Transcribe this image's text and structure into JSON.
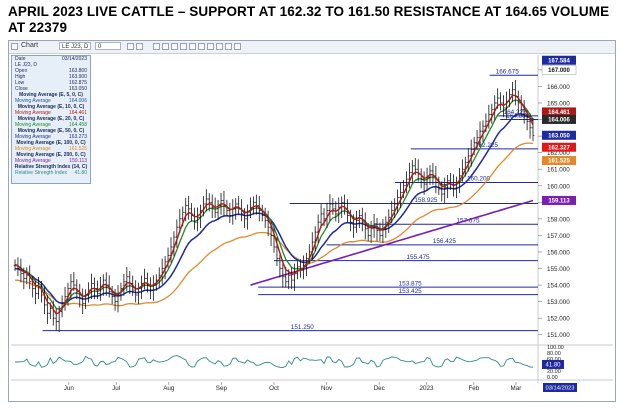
{
  "headline": "APRIL 2023 LIVE CATTLE –  SUPPORT AT 162.32 TO 161.50  RESISTANCE AT 164.65  VOLUME AT 22379",
  "toolbar": {
    "chart_label": "Chart",
    "symbol": "LE J23, D",
    "interval": "0"
  },
  "data_window": {
    "rows": [
      {
        "label": "Date",
        "value": "03/14/2023",
        "kind": "plain",
        "color": "#1a2a5a"
      },
      {
        "label": "LE J23, D",
        "value": "",
        "kind": "plain",
        "color": "#1a2a5a"
      },
      {
        "label": "Open",
        "value": "163.800",
        "kind": "plain",
        "color": "#1a2a5a"
      },
      {
        "label": "High",
        "value": "163.900",
        "kind": "plain",
        "color": "#1a2a5a"
      },
      {
        "label": "Low",
        "value": "162.875",
        "kind": "plain",
        "color": "#1a2a5a"
      },
      {
        "label": "Close",
        "value": "163.050",
        "kind": "plain",
        "color": "#1a2a5a"
      },
      {
        "label": "Moving Average (E, 5, 0, C)",
        "value": "",
        "kind": "header",
        "color": "#1a2a5a"
      },
      {
        "label": "Moving Average",
        "value": "164.006",
        "kind": "plain",
        "color": "#2b4fa0"
      },
      {
        "label": "Moving Average (E, 10, 0, C)",
        "value": "",
        "kind": "header",
        "color": "#1a2a5a"
      },
      {
        "label": "Moving Average",
        "value": "164.461",
        "kind": "plain",
        "color": "#b01818"
      },
      {
        "label": "Moving Average (E, 20, 0, C)",
        "value": "",
        "kind": "header",
        "color": "#1a2a5a"
      },
      {
        "label": "Moving Average",
        "value": "164.458",
        "kind": "plain",
        "color": "#1d8a2b"
      },
      {
        "label": "Moving Average (E, 50, 0, C)",
        "value": "",
        "kind": "header",
        "color": "#1a2a5a"
      },
      {
        "label": "Moving Average",
        "value": "163.273",
        "kind": "plain",
        "color": "#1e2aa0"
      },
      {
        "label": "Moving Average (E, 100, 0, C)",
        "value": "",
        "kind": "header",
        "color": "#1a2a5a"
      },
      {
        "label": "Moving Average",
        "value": "161.525",
        "kind": "plain",
        "color": "#d98a2b"
      },
      {
        "label": "Moving Average (E, 200, 0, C)",
        "value": "",
        "kind": "header",
        "color": "#1a2a5a"
      },
      {
        "label": "Moving Average",
        "value": "159.113",
        "kind": "plain",
        "color": "#7a1fb0"
      },
      {
        "label": "Relative Strength Index (14, C)",
        "value": "",
        "kind": "header",
        "color": "#1a2a5a"
      },
      {
        "label": "Relative Strength Index",
        "value": "41.80",
        "kind": "plain",
        "color": "#2e8a8a"
      }
    ]
  },
  "colors": {
    "accent": "#1e2aa0",
    "ma10": "#b01818",
    "ma20": "#1d8a2b",
    "ma50": "#1e2aa0",
    "ma100": "#e08a2c",
    "ma200": "#7a1fb0",
    "rsi": "#2e8a8a"
  },
  "chart_data": {
    "type": "candlestick",
    "title": "",
    "xlabel": "",
    "ylabel": "",
    "ylim": [
      150.5,
      167.9
    ],
    "x_ticks": [
      "Jun",
      "Jul",
      "Aug",
      "Sep",
      "Oct",
      "Nov",
      "Dec",
      "2023",
      "Feb",
      "Mar"
    ],
    "x_tick_positions": [
      0.11,
      0.2,
      0.3,
      0.4,
      0.5,
      0.6,
      0.7,
      0.79,
      0.88,
      0.96
    ],
    "y_ticks": [
      151.0,
      152.0,
      153.0,
      154.0,
      155.0,
      156.0,
      157.0,
      158.0,
      159.0,
      160.0,
      161.0,
      162.0,
      163.0,
      164.0,
      165.0,
      166.0,
      167.0
    ],
    "date_tag": "03/14/2023",
    "levels": [
      {
        "value": 166.675,
        "label": "166.675",
        "x_start": 0.91
      },
      {
        "value": 164.225,
        "label": "164.225",
        "x_start": 0.925
      },
      {
        "value": 164.0,
        "label": "164.000",
        "x_start": 0.93
      },
      {
        "value": 162.225,
        "label": "162.225",
        "x_start": 0.76
      },
      {
        "value": 160.2,
        "label": "160.200",
        "x_start": 0.73
      },
      {
        "value": 158.925,
        "label": "158.925",
        "x_start": 0.53
      },
      {
        "value": 157.675,
        "label": "157.675",
        "x_start": 0.69
      },
      {
        "value": 156.425,
        "label": "156.425",
        "x_start": 0.6
      },
      {
        "value": 155.475,
        "label": "155.475",
        "x_start": 0.5
      },
      {
        "value": 153.875,
        "label": "153.875",
        "x_start": 0.47
      },
      {
        "value": 153.425,
        "label": "153.425",
        "x_start": 0.47
      },
      {
        "value": 151.25,
        "label": "151.250",
        "x_start": 0.06
      }
    ],
    "axis_tags": [
      {
        "value": 167.584,
        "label": "167.584",
        "bg": "#1e2aa0"
      },
      {
        "value": 167.0,
        "label": "167.000",
        "bg": "#ffffff"
      },
      {
        "value": 164.461,
        "label": "164.461",
        "bg": "#b01818"
      },
      {
        "value": 164.006,
        "label": "164.006",
        "bg": "#2a2a2a"
      },
      {
        "value": 163.05,
        "label": "163.050",
        "bg": "#1e2aa0"
      },
      {
        "value": 162.327,
        "label": "162.327",
        "bg": "#e01818"
      },
      {
        "value": 161.525,
        "label": "161.525",
        "bg": "#e08a2c"
      },
      {
        "value": 159.113,
        "label": "159.113",
        "bg": "#7a1fb0"
      }
    ],
    "closes": [
      155.2,
      155.0,
      154.7,
      154.4,
      154.6,
      154.2,
      153.8,
      153.5,
      153.9,
      153.4,
      152.8,
      152.3,
      152.6,
      152.0,
      151.8,
      152.4,
      152.9,
      153.3,
      153.8,
      154.2,
      154.0,
      153.6,
      153.2,
      152.9,
      153.4,
      153.7,
      154.1,
      153.8,
      153.5,
      153.9,
      154.3,
      154.0,
      153.6,
      153.3,
      153.0,
      153.4,
      153.8,
      154.2,
      154.5,
      154.1,
      153.7,
      153.4,
      153.8,
      154.1,
      154.4,
      154.0,
      153.7,
      154.0,
      154.3,
      154.6,
      155.0,
      155.4,
      155.8,
      156.3,
      156.9,
      157.5,
      158.0,
      158.4,
      158.8,
      158.6,
      158.2,
      157.8,
      158.1,
      158.5,
      158.9,
      159.2,
      159.0,
      158.7,
      158.4,
      158.8,
      159.1,
      158.8,
      158.5,
      158.2,
      158.6,
      158.9,
      158.6,
      158.3,
      158.0,
      158.4,
      158.7,
      159.0,
      158.8,
      158.5,
      158.2,
      157.9,
      157.5,
      157.0,
      156.3,
      155.6,
      155.0,
      154.5,
      154.2,
      154.6,
      154.3,
      154.7,
      155.1,
      154.9,
      155.2,
      155.6,
      156.0,
      156.6,
      157.2,
      157.8,
      158.3,
      158.0,
      158.5,
      158.9,
      158.6,
      158.3,
      158.7,
      159.0,
      158.6,
      158.2,
      157.8,
      157.5,
      157.9,
      158.2,
      157.8,
      157.4,
      157.0,
      157.4,
      157.7,
      157.3,
      157.0,
      157.4,
      157.8,
      158.1,
      158.5,
      158.9,
      159.3,
      159.6,
      160.0,
      160.4,
      160.8,
      161.2,
      161.0,
      160.7,
      160.4,
      160.1,
      160.5,
      160.9,
      160.6,
      160.2,
      159.8,
      159.5,
      159.9,
      160.3,
      160.1,
      159.8,
      160.2,
      160.6,
      161.0,
      161.4,
      161.8,
      162.2,
      162.6,
      162.9,
      163.3,
      163.6,
      163.9,
      164.3,
      164.6,
      165.0,
      165.3,
      165.0,
      164.7,
      165.1,
      165.5,
      165.8,
      165.4,
      165.0,
      164.6,
      164.2,
      163.9,
      163.5,
      163.05
    ],
    "rsi": {
      "ylim": [
        0,
        100
      ],
      "y_ticks": [
        100,
        80,
        60,
        40,
        20,
        0
      ],
      "last": 41.8
    }
  }
}
